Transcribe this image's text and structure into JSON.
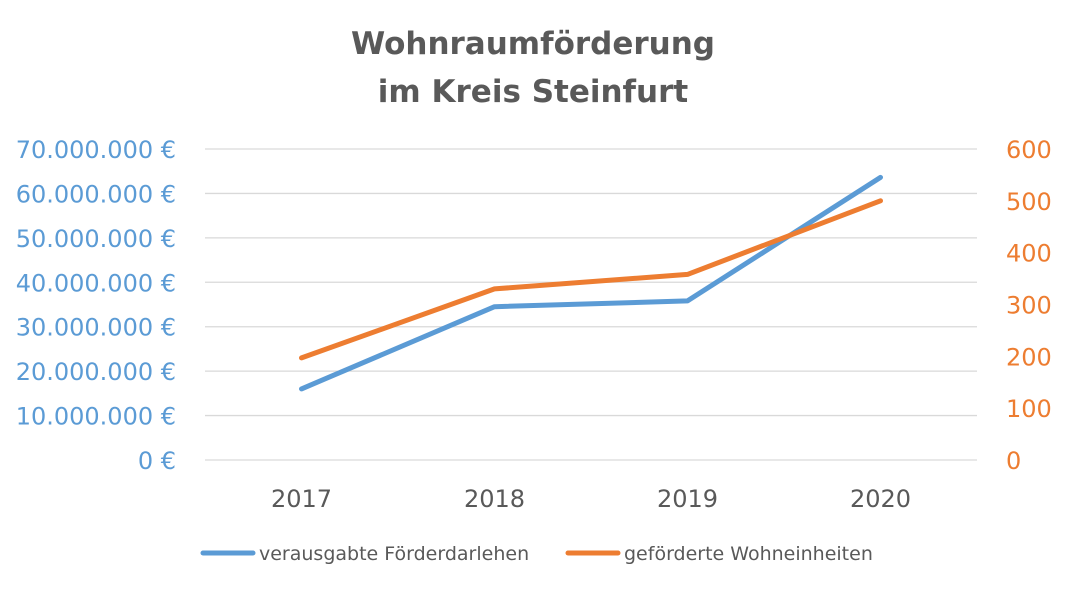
{
  "chart_data": {
    "type": "line",
    "title_lines": [
      "Wohnraumförderung",
      "im Kreis Steinfurt"
    ],
    "categories": [
      "2017",
      "2018",
      "2019",
      "2020"
    ],
    "series": [
      {
        "name": "verausgabte Förderdarlehen",
        "axis": "left",
        "color": "#5b9bd5",
        "values": [
          16000000,
          34500000,
          35800000,
          63600000
        ]
      },
      {
        "name": "geförderte Wohneinheiten",
        "axis": "right",
        "color": "#ed7d31",
        "values": [
          197,
          330,
          358,
          500
        ]
      }
    ],
    "y_left": {
      "range": [
        0,
        70000000
      ],
      "tick_values": [
        0,
        10000000,
        20000000,
        30000000,
        40000000,
        50000000,
        60000000,
        70000000
      ],
      "tick_labels": [
        "0 €",
        "10.000.000 €",
        "20.000.000 €",
        "30.000.000 €",
        "40.000.000 €",
        "50.000.000 €",
        "60.000.000 €",
        "70.000.000 €"
      ]
    },
    "y_right": {
      "range": [
        0,
        600
      ],
      "tick_values": [
        0,
        100,
        200,
        300,
        400,
        500,
        600
      ],
      "tick_labels": [
        "0",
        "100",
        "200",
        "300",
        "400",
        "500",
        "600"
      ]
    },
    "grid": true,
    "legend_position": "bottom"
  }
}
